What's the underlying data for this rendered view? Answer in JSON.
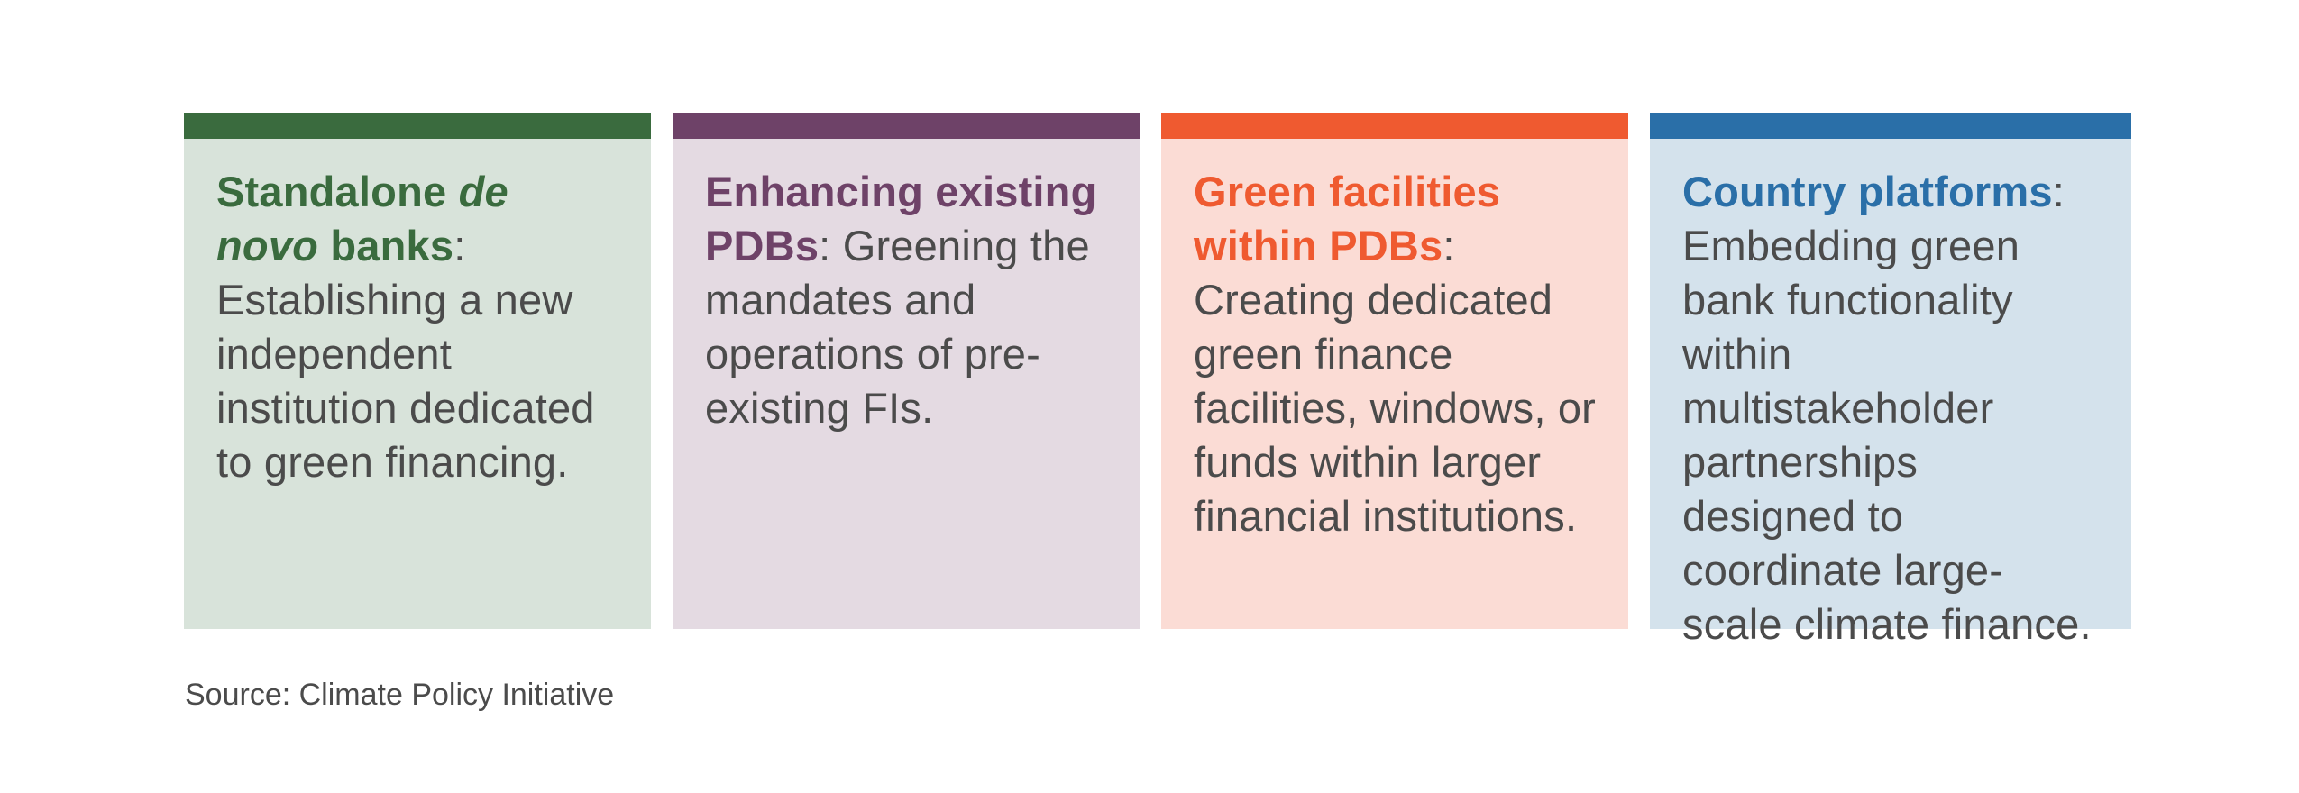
{
  "cards": [
    {
      "title_pre": "Standalone ",
      "title_italic": "de novo",
      "title_post": " banks",
      "separator": ":",
      "body": " Establishing a new independent institution dedicated to green financing.",
      "bar_color": "#3a6b3e",
      "bg_color": "#d8e3da",
      "title_color": "#3a6b3e"
    },
    {
      "title_pre": "Enhancing existing PDBs",
      "title_italic": "",
      "title_post": "",
      "separator": ":",
      "body": " Greening the mandates and operations of pre-existing FIs.",
      "bar_color": "#6e4268",
      "bg_color": "#e4dae2",
      "title_color": "#6e4268"
    },
    {
      "title_pre": "Green facilities within PDBs",
      "title_italic": "",
      "title_post": "",
      "separator": ":",
      "body": " Creating dedicated green finance facilities, windows, or funds within larger financial institutions.",
      "bar_color": "#ef5a30",
      "bg_color": "#fbdcd5",
      "title_color": "#ef5a30"
    },
    {
      "title_pre": "Country platforms",
      "title_italic": "",
      "title_post": "",
      "separator": ":",
      "body": " Embedding green bank functionality within multistakeholder partnerships designed to coordinate large-scale climate finance.",
      "bar_color": "#2a6fa8",
      "bg_color": "#d4e2ec",
      "title_color": "#2a6fa8"
    }
  ],
  "source": "Source: Climate Policy Initiative"
}
